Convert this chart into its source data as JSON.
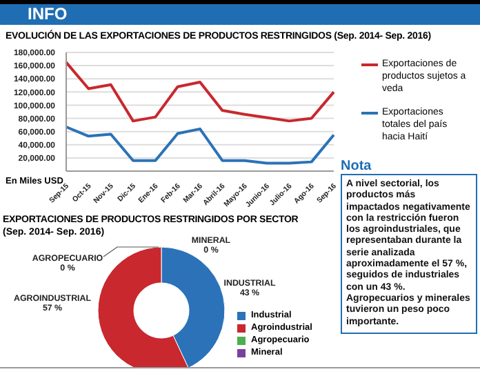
{
  "chart_data": [
    {
      "type": "line",
      "title": "EVOLUCIÓN DE LAS EXPORTACIONES DE PRODUCTOS RESTRINGIDOS (Sep. 2014- Sep. 2016)",
      "annotations": [
        "INFO"
      ],
      "ylabel": "En Miles USD",
      "categories": [
        "Sep-15",
        "Oct-15",
        "Nov-15",
        "Dic-15",
        "Ene-16",
        "Feb-16",
        "Mar-16",
        "Abril-16",
        "Mayo-16",
        "Junio-16",
        "Julio-16",
        "Ago-16",
        "Sep-16"
      ],
      "series": [
        {
          "name": "Exportaciones de productos sujetos a veda",
          "color": "#c8282e",
          "values": [
            165000,
            125000,
            131000,
            76000,
            82000,
            128000,
            135000,
            92000,
            86000,
            81000,
            76000,
            80000,
            120000
          ]
        },
        {
          "name": "Exportaciones totales del país hacia Haití",
          "color": "#2b72b8",
          "values": [
            67000,
            53000,
            56000,
            16000,
            16000,
            57000,
            64000,
            16000,
            16000,
            12000,
            12000,
            14000,
            55000
          ]
        }
      ],
      "ylim": [
        0,
        180000
      ],
      "yticks": [
        {
          "value": 0,
          "label": null
        },
        {
          "value": 20000,
          "label": "20,000.00"
        },
        {
          "value": 40000,
          "label": "40,000.00"
        },
        {
          "value": 60000,
          "label": "60,000.00"
        },
        {
          "value": 80000,
          "label": "80,000.00"
        },
        {
          "value": 100000,
          "label": "100,000.00"
        },
        {
          "value": 120000,
          "label": "120,000.00"
        },
        {
          "value": 140000,
          "label": "140,000.00"
        },
        {
          "value": 160000,
          "label": "160,000.00"
        },
        {
          "value": 180000,
          "label": "180,000.00"
        }
      ],
      "grid": "y",
      "legend": "right",
      "marker": "none",
      "line_style": "solid"
    },
    {
      "type": "donut",
      "title": "EXPORTACIONES DE PRODUCTOS RESTRINGIDOS POR SECTOR",
      "subtitle": "(Sep. 2014- Sep. 2016)",
      "categories": [
        "Industrial",
        "Agroindustrial",
        "Agropecuario",
        "Mineral"
      ],
      "values": [
        43,
        57,
        0,
        0
      ],
      "colors": [
        "#2b72b8",
        "#c8282e",
        "#4caf50",
        "#7b3f9e"
      ],
      "value_labels": [
        "INDUSTRIAL 43 %",
        "AGROINDUSTRIAL 57 %",
        "AGROPECUARIO 0 %",
        "MINERAL 0 %"
      ],
      "legend": "bottom right"
    },
    {
      "type": "other",
      "title": "Nota",
      "annotations": [
        "A nivel sectorial, los productos más impactados negativamente con la restricción fueron los agroindustriales, que representaban durante la serie analizada aproximadamente el 57 %, seguidos de industriales con un 43 %. Agropecuarios y minerales tuvieron un peso poco importante."
      ]
    }
  ]
}
